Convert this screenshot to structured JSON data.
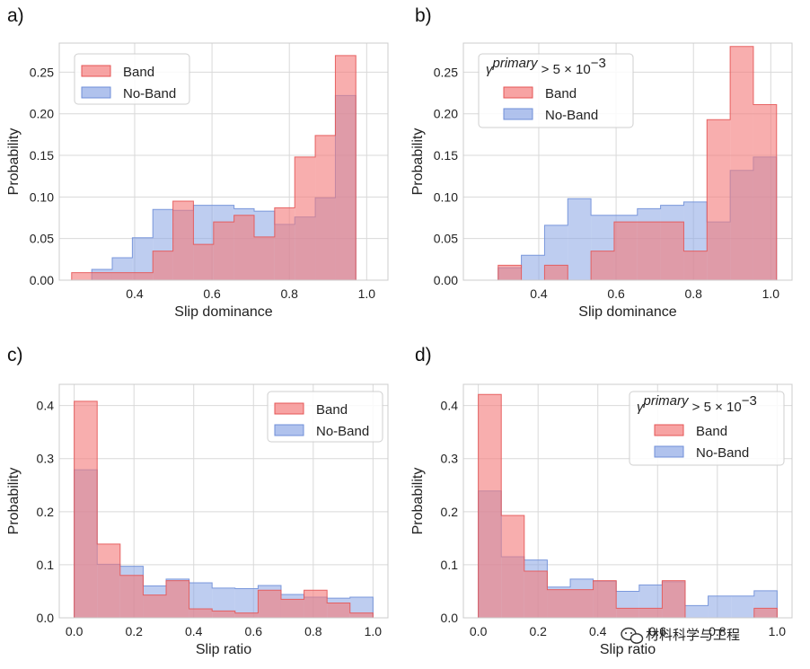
{
  "colors": {
    "band_fill": "#f47c7c",
    "band_edge": "#e45656",
    "noband_fill": "#8fa8e6",
    "noband_edge": "#6f8fd8",
    "grid": "#d9d9d9",
    "frame": "#cccccc"
  },
  "watermark": {
    "text": "材料科学与工程",
    "icon": "wechat-icon"
  },
  "chart_data": [
    {
      "panel": "a)",
      "type": "histogram",
      "xlabel": "Slip dominance",
      "ylabel": "Probability",
      "xlim": [
        0.205,
        1.055
      ],
      "ylim": [
        0,
        0.285
      ],
      "xticks": [
        0.4,
        0.6,
        0.8,
        1.0
      ],
      "xtick_labels": [
        "0.4",
        "0.6",
        "0.8",
        "1.0"
      ],
      "yticks": [
        0.0,
        0.05,
        0.1,
        0.15,
        0.2,
        0.25
      ],
      "ytick_labels": [
        "0.00",
        "0.05",
        "0.10",
        "0.15",
        "0.20",
        "0.25"
      ],
      "grid": true,
      "legend_placement": "top-left",
      "legend_title": null,
      "series": [
        {
          "name": "Band",
          "edges": [
            0.237,
            0.289,
            0.342,
            0.394,
            0.447,
            0.499,
            0.552,
            0.604,
            0.657,
            0.709,
            0.762,
            0.814,
            0.867,
            0.919,
            0.972,
            1.024
          ],
          "values": [
            0.009,
            0.009,
            0.009,
            0.009,
            0.035,
            0.095,
            0.043,
            0.07,
            0.078,
            0.052,
            0.087,
            0.148,
            0.174,
            0.27,
            0.0
          ]
        },
        {
          "name": "No-Band",
          "edges": [
            0.237,
            0.289,
            0.342,
            0.394,
            0.447,
            0.499,
            0.552,
            0.604,
            0.657,
            0.709,
            0.762,
            0.814,
            0.867,
            0.919,
            0.972,
            1.024
          ],
          "values": [
            0.0,
            0.013,
            0.027,
            0.051,
            0.085,
            0.084,
            0.09,
            0.09,
            0.086,
            0.083,
            0.067,
            0.076,
            0.099,
            0.222,
            0.0
          ]
        }
      ]
    },
    {
      "panel": "b)",
      "type": "histogram",
      "xlabel": "Slip dominance",
      "ylabel": "Probability",
      "xlim": [
        0.205,
        1.055
      ],
      "ylim": [
        0,
        0.285
      ],
      "xticks": [
        0.4,
        0.6,
        0.8,
        1.0
      ],
      "xtick_labels": [
        "0.4",
        "0.6",
        "0.8",
        "1.0"
      ],
      "yticks": [
        0.0,
        0.05,
        0.1,
        0.15,
        0.2,
        0.25
      ],
      "ytick_labels": [
        "0.00",
        "0.05",
        "0.10",
        "0.15",
        "0.20",
        "0.25"
      ],
      "grid": true,
      "legend_placement": "top-left",
      "legend_title": {
        "symbol": "γ",
        "sup": "primary",
        "rest": " > 5 × 10",
        "exp": "−3"
      },
      "series": [
        {
          "name": "Band",
          "edges": [
            0.235,
            0.295,
            0.355,
            0.415,
            0.475,
            0.535,
            0.595,
            0.655,
            0.715,
            0.775,
            0.835,
            0.895,
            0.955,
            1.015
          ],
          "values": [
            0.0,
            0.018,
            0.0,
            0.018,
            0.0,
            0.035,
            0.07,
            0.07,
            0.07,
            0.035,
            0.193,
            0.281,
            0.211
          ]
        },
        {
          "name": "No-Band",
          "edges": [
            0.235,
            0.295,
            0.355,
            0.415,
            0.475,
            0.535,
            0.595,
            0.655,
            0.715,
            0.775,
            0.835,
            0.895,
            0.955,
            1.015
          ],
          "values": [
            0.0,
            0.015,
            0.03,
            0.066,
            0.098,
            0.078,
            0.078,
            0.086,
            0.09,
            0.094,
            0.07,
            0.132,
            0.148
          ]
        }
      ]
    },
    {
      "panel": "c)",
      "type": "histogram",
      "xlabel": "Slip ratio",
      "ylabel": "Probability",
      "xlim": [
        -0.05,
        1.05
      ],
      "ylim": [
        0,
        0.44
      ],
      "xticks": [
        0.0,
        0.2,
        0.4,
        0.6,
        0.8,
        1.0
      ],
      "xtick_labels": [
        "0.0",
        "0.2",
        "0.4",
        "0.6",
        "0.8",
        "1.0"
      ],
      "yticks": [
        0.0,
        0.1,
        0.2,
        0.3,
        0.4
      ],
      "ytick_labels": [
        "0.0",
        "0.1",
        "0.2",
        "0.3",
        "0.4"
      ],
      "grid": true,
      "legend_placement": "top-right",
      "legend_title": null,
      "series": [
        {
          "name": "Band",
          "edges": [
            0.0,
            0.0769,
            0.1538,
            0.2308,
            0.3077,
            0.3846,
            0.4615,
            0.5385,
            0.6154,
            0.6923,
            0.7692,
            0.8462,
            0.9231,
            1.0
          ],
          "values": [
            0.408,
            0.139,
            0.08,
            0.043,
            0.07,
            0.017,
            0.013,
            0.009,
            0.052,
            0.035,
            0.052,
            0.028,
            0.009
          ]
        },
        {
          "name": "No-Band",
          "edges": [
            0.0,
            0.0769,
            0.1538,
            0.2308,
            0.3077,
            0.3846,
            0.4615,
            0.5385,
            0.6154,
            0.6923,
            0.7692,
            0.8462,
            0.9231,
            1.0
          ],
          "values": [
            0.279,
            0.101,
            0.097,
            0.06,
            0.073,
            0.066,
            0.056,
            0.055,
            0.061,
            0.044,
            0.039,
            0.037,
            0.039
          ]
        }
      ]
    },
    {
      "panel": "d)",
      "type": "histogram",
      "xlabel": "Slip ratio",
      "ylabel": "Probability",
      "xlim": [
        -0.05,
        1.05
      ],
      "ylim": [
        0,
        0.44
      ],
      "xticks": [
        0.0,
        0.2,
        0.4,
        0.6,
        0.8,
        1.0
      ],
      "xtick_labels": [
        "0.0",
        "0.2",
        "0.4",
        "0.6",
        "0.8",
        "1.0"
      ],
      "yticks": [
        0.0,
        0.1,
        0.2,
        0.3,
        0.4
      ],
      "ytick_labels": [
        "0.0",
        "0.1",
        "0.2",
        "0.3",
        "0.4"
      ],
      "grid": true,
      "legend_placement": "top-right",
      "legend_title": {
        "symbol": "γ",
        "sup": "primary",
        "rest": " > 5 × 10",
        "exp": "−3"
      },
      "series": [
        {
          "name": "Band",
          "edges": [
            0.0,
            0.0769,
            0.1538,
            0.2308,
            0.3077,
            0.3846,
            0.4615,
            0.5385,
            0.6154,
            0.6923,
            0.7692,
            0.8462,
            0.9231,
            1.0
          ],
          "values": [
            0.421,
            0.193,
            0.088,
            0.053,
            0.053,
            0.07,
            0.018,
            0.018,
            0.07,
            0.0,
            0.0,
            0.0,
            0.018
          ]
        },
        {
          "name": "No-Band",
          "edges": [
            0.0,
            0.0769,
            0.1538,
            0.2308,
            0.3077,
            0.3846,
            0.4615,
            0.5385,
            0.6154,
            0.6923,
            0.7692,
            0.8462,
            0.9231,
            1.0
          ],
          "values": [
            0.239,
            0.115,
            0.109,
            0.058,
            0.073,
            0.069,
            0.05,
            0.062,
            0.068,
            0.023,
            0.041,
            0.041,
            0.051
          ]
        }
      ]
    }
  ]
}
